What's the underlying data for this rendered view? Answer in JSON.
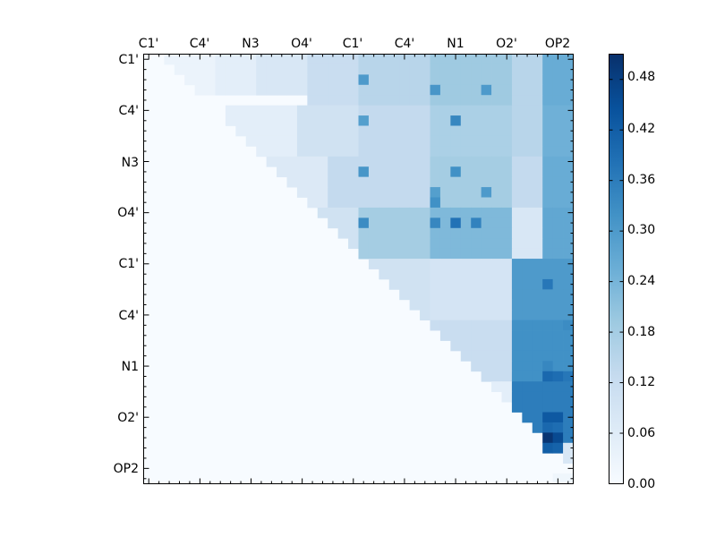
{
  "chart_data": {
    "type": "heatmap",
    "title": "",
    "xlabel": "",
    "ylabel": "",
    "n": 42,
    "x_tick_labels": [
      "C1'",
      "C4'",
      "N3",
      "O4'",
      "C1'",
      "C4'",
      "N1",
      "O2'",
      "OP2"
    ],
    "y_tick_labels": [
      "C1'",
      "C4'",
      "N3",
      "O4'",
      "C1'",
      "C4'",
      "N1",
      "O2'",
      "OP2"
    ],
    "tick_label_index_step": 5,
    "minor_tick_step": 1,
    "upper_triangle_only": true,
    "colormap": "Blues",
    "colormap_stops": [
      [
        0.0,
        "#f7fbff"
      ],
      [
        0.125,
        "#deebf7"
      ],
      [
        0.25,
        "#c6dbef"
      ],
      [
        0.375,
        "#9ecae1"
      ],
      [
        0.5,
        "#6baed6"
      ],
      [
        0.625,
        "#4292c6"
      ],
      [
        0.75,
        "#2171b5"
      ],
      [
        0.875,
        "#08519c"
      ],
      [
        1.0,
        "#08306b"
      ]
    ],
    "vmin": 0.0,
    "vmax": 0.51,
    "colorbar_ticks": [
      "0.00",
      "0.06",
      "0.12",
      "0.18",
      "0.24",
      "0.30",
      "0.36",
      "0.42",
      "0.48"
    ],
    "colorbar_tick_values": [
      0.0,
      0.06,
      0.12,
      0.18,
      0.24,
      0.3,
      0.36,
      0.42,
      0.48
    ],
    "blocks": [
      {
        "rows": [
          0,
          3
        ],
        "cols": [
          2,
          6
        ],
        "value": 0.03
      },
      {
        "rows": [
          0,
          3
        ],
        "cols": [
          7,
          10
        ],
        "value": 0.05
      },
      {
        "rows": [
          0,
          3
        ],
        "cols": [
          11,
          15
        ],
        "value": 0.08
      },
      {
        "rows": [
          0,
          4
        ],
        "cols": [
          16,
          20
        ],
        "value": 0.12
      },
      {
        "rows": [
          0,
          4
        ],
        "cols": [
          21,
          27
        ],
        "value": 0.15
      },
      {
        "rows": [
          0,
          4
        ],
        "cols": [
          28,
          35
        ],
        "value": 0.19
      },
      {
        "rows": [
          0,
          4
        ],
        "cols": [
          36,
          38
        ],
        "value": 0.15
      },
      {
        "rows": [
          0,
          4
        ],
        "cols": [
          39,
          41
        ],
        "value": 0.26
      },
      {
        "rows": [
          5,
          9
        ],
        "cols": [
          8,
          14
        ],
        "value": 0.05
      },
      {
        "rows": [
          5,
          9
        ],
        "cols": [
          15,
          20
        ],
        "value": 0.1
      },
      {
        "rows": [
          5,
          9
        ],
        "cols": [
          21,
          27
        ],
        "value": 0.13
      },
      {
        "rows": [
          5,
          9
        ],
        "cols": [
          28,
          35
        ],
        "value": 0.17
      },
      {
        "rows": [
          5,
          9
        ],
        "cols": [
          36,
          38
        ],
        "value": 0.15
      },
      {
        "rows": [
          5,
          9
        ],
        "cols": [
          39,
          41
        ],
        "value": 0.25
      },
      {
        "rows": [
          10,
          14
        ],
        "cols": [
          12,
          17
        ],
        "value": 0.07
      },
      {
        "rows": [
          10,
          14
        ],
        "cols": [
          18,
          27
        ],
        "value": 0.13
      },
      {
        "rows": [
          10,
          14
        ],
        "cols": [
          28,
          35
        ],
        "value": 0.18
      },
      {
        "rows": [
          10,
          14
        ],
        "cols": [
          36,
          38
        ],
        "value": 0.13
      },
      {
        "rows": [
          10,
          14
        ],
        "cols": [
          39,
          41
        ],
        "value": 0.26
      },
      {
        "rows": [
          15,
          19
        ],
        "cols": [
          16,
          20
        ],
        "value": 0.1
      },
      {
        "rows": [
          15,
          19
        ],
        "cols": [
          21,
          27
        ],
        "value": 0.18
      },
      {
        "rows": [
          15,
          19
        ],
        "cols": [
          28,
          35
        ],
        "value": 0.23
      },
      {
        "rows": [
          15,
          19
        ],
        "cols": [
          36,
          38
        ],
        "value": 0.08
      },
      {
        "rows": [
          15,
          19
        ],
        "cols": [
          39,
          41
        ],
        "value": 0.27
      },
      {
        "rows": [
          20,
          25
        ],
        "cols": [
          20,
          27
        ],
        "value": 0.1
      },
      {
        "rows": [
          20,
          25
        ],
        "cols": [
          28,
          35
        ],
        "value": 0.09
      },
      {
        "rows": [
          20,
          25
        ],
        "cols": [
          36,
          41
        ],
        "value": 0.3
      },
      {
        "rows": [
          26,
          31
        ],
        "cols": [
          26,
          35
        ],
        "value": 0.12
      },
      {
        "rows": [
          26,
          31
        ],
        "cols": [
          36,
          41
        ],
        "value": 0.32
      },
      {
        "rows": [
          32,
          37
        ],
        "cols": [
          30,
          35
        ],
        "value": 0.05
      },
      {
        "rows": [
          32,
          37
        ],
        "cols": [
          36,
          41
        ],
        "value": 0.36
      },
      {
        "rows": [
          38,
          41
        ],
        "cols": [
          36,
          41
        ],
        "value": 0.08
      }
    ],
    "hotspots": [
      {
        "row": 2,
        "col": 21,
        "value": 0.3
      },
      {
        "row": 3,
        "col": 28,
        "value": 0.31
      },
      {
        "row": 3,
        "col": 33,
        "value": 0.3
      },
      {
        "row": 6,
        "col": 21,
        "value": 0.29
      },
      {
        "row": 6,
        "col": 30,
        "value": 0.34
      },
      {
        "row": 11,
        "col": 21,
        "value": 0.31
      },
      {
        "row": 11,
        "col": 30,
        "value": 0.32
      },
      {
        "row": 13,
        "col": 28,
        "value": 0.29
      },
      {
        "row": 13,
        "col": 33,
        "value": 0.3
      },
      {
        "row": 14,
        "col": 28,
        "value": 0.32
      },
      {
        "row": 16,
        "col": 21,
        "value": 0.33
      },
      {
        "row": 16,
        "col": 28,
        "value": 0.34
      },
      {
        "row": 16,
        "col": 30,
        "value": 0.38
      },
      {
        "row": 16,
        "col": 32,
        "value": 0.35
      },
      {
        "row": 22,
        "col": 39,
        "value": 0.37
      },
      {
        "row": 26,
        "col": 39,
        "value": 0.32
      },
      {
        "row": 26,
        "col": 40,
        "value": 0.32
      },
      {
        "row": 26,
        "col": 41,
        "value": 0.33
      },
      {
        "row": 30,
        "col": 39,
        "value": 0.34
      },
      {
        "row": 30,
        "col": 40,
        "value": 0.32
      },
      {
        "row": 31,
        "col": 39,
        "value": 0.4
      },
      {
        "row": 31,
        "col": 40,
        "value": 0.39
      },
      {
        "row": 31,
        "col": 41,
        "value": 0.37
      },
      {
        "row": 35,
        "col": 39,
        "value": 0.43
      },
      {
        "row": 35,
        "col": 40,
        "value": 0.43
      },
      {
        "row": 36,
        "col": 39,
        "value": 0.4
      },
      {
        "row": 36,
        "col": 40,
        "value": 0.39
      },
      {
        "row": 37,
        "col": 39,
        "value": 0.5
      },
      {
        "row": 37,
        "col": 40,
        "value": 0.46
      },
      {
        "row": 38,
        "col": 39,
        "value": 0.42
      },
      {
        "row": 38,
        "col": 40,
        "value": 0.41
      },
      {
        "row": 41,
        "col": 40,
        "value": 0.02
      },
      {
        "row": 41,
        "col": 41,
        "value": 0.02
      }
    ]
  }
}
